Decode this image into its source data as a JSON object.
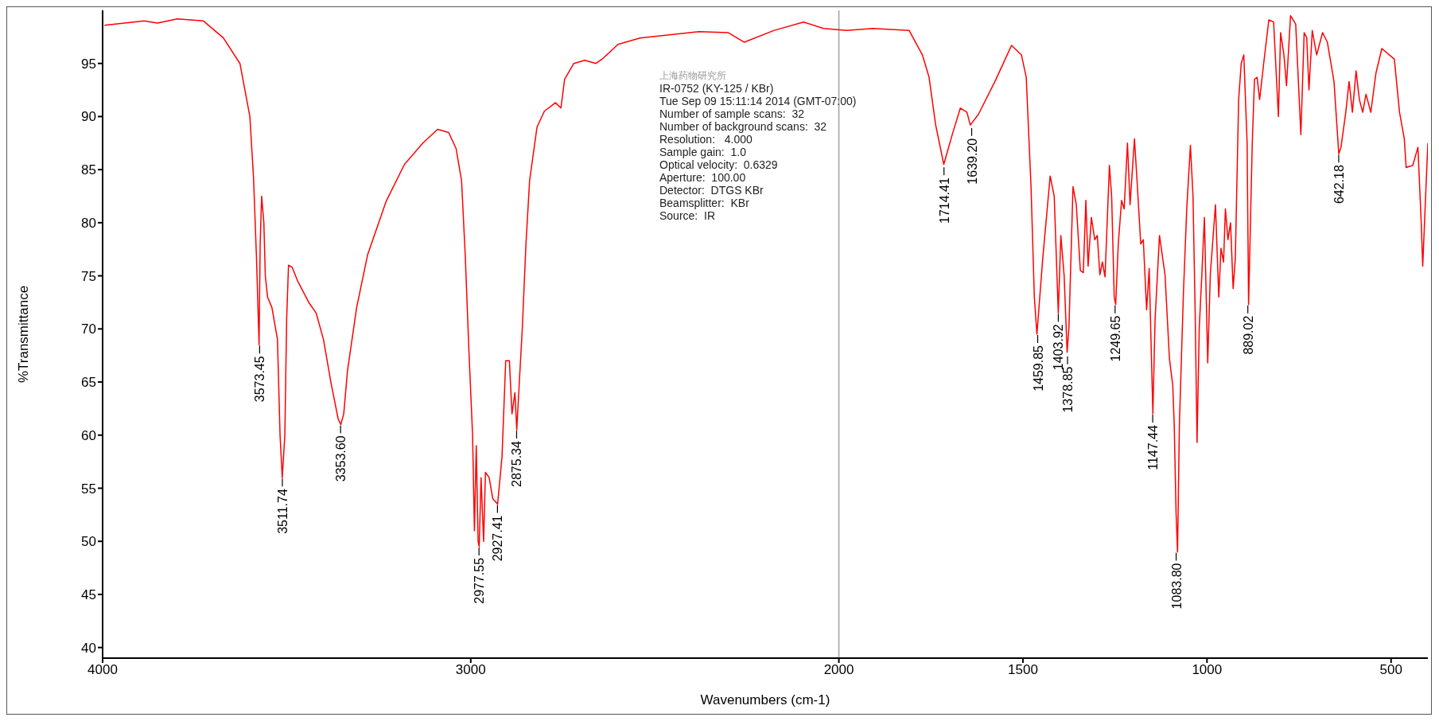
{
  "chart_data": {
    "type": "line",
    "xlabel": "Wavenumbers (cm-1)",
    "ylabel": "%Transmittance",
    "xlim": [
      4000,
      400
    ],
    "xticks": [
      4000,
      3000,
      2000,
      1500,
      1000,
      500
    ],
    "ylim": [
      39,
      100
    ],
    "yticks": [
      40,
      45,
      50,
      55,
      60,
      65,
      70,
      75,
      80,
      85,
      90,
      95
    ],
    "grid": false,
    "marker": "none",
    "line_style": "solid",
    "ref_lines": [
      {
        "axis": "x",
        "value": 2000,
        "color": "#a0a0a0"
      }
    ],
    "x": [
      3995,
      3887,
      3851,
      3797,
      3726,
      3672,
      3627,
      3600,
      3590,
      3582,
      3575,
      3572,
      3568,
      3562,
      3558,
      3552,
      3540,
      3525,
      3518,
      3512,
      3505,
      3500,
      3495,
      3485,
      3470,
      3440,
      3420,
      3400,
      3380,
      3360,
      3353,
      3345,
      3335,
      3310,
      3280,
      3230,
      3180,
      3130,
      3090,
      3060,
      3040,
      3025,
      3015,
      3005,
      2995,
      2990,
      2985,
      2980,
      2977,
      2972,
      2965,
      2960,
      2950,
      2940,
      2927,
      2915,
      2905,
      2895,
      2888,
      2880,
      2875,
      2868,
      2860,
      2850,
      2840,
      2820,
      2800,
      2770,
      2755,
      2745,
      2720,
      2690,
      2660,
      2640,
      2600,
      2540,
      2460,
      2380,
      2300,
      2257,
      2177,
      2096,
      2042,
      1979,
      1908,
      1809,
      1773,
      1755,
      1737,
      1715,
      1692,
      1670,
      1652,
      1643,
      1621,
      1576,
      1531,
      1504,
      1491,
      1478,
      1469,
      1462,
      1446,
      1426,
      1415,
      1404,
      1397,
      1388,
      1380,
      1375,
      1364,
      1355,
      1344,
      1336,
      1329,
      1323,
      1314,
      1305,
      1298,
      1291,
      1284,
      1277,
      1265,
      1259,
      1252,
      1248,
      1241,
      1232,
      1225,
      1216,
      1209,
      1197,
      1189,
      1180,
      1173,
      1164,
      1157,
      1147,
      1141,
      1129,
      1114,
      1102,
      1093,
      1089,
      1084,
      1080,
      1075,
      1064,
      1055,
      1045,
      1038,
      1032,
      1027,
      1021,
      1014,
      1007,
      998,
      991,
      984,
      977,
      968,
      962,
      955,
      950,
      943,
      936,
      929,
      923,
      914,
      907,
      900,
      891,
      887,
      877,
      871,
      864,
      857,
      846,
      832,
      819,
      806,
      800,
      791,
      784,
      773,
      759,
      745,
      736,
      729,
      723,
      714,
      702,
      686,
      673,
      655,
      642,
      636,
      623,
      614,
      605,
      595,
      586,
      577,
      568,
      555,
      541,
      525,
      491,
      477,
      464,
      459,
      441,
      427,
      418,
      414,
      405,
      400
    ],
    "series": [
      {
        "color": "#ff0000",
        "values": [
          98.6,
          99.0,
          98.8,
          99.2,
          99.0,
          97.4,
          95.0,
          90.0,
          84.2,
          76.7,
          68.5,
          78.0,
          82.5,
          80.0,
          75.0,
          73.0,
          72.0,
          69.0,
          60.0,
          56.0,
          60.0,
          71.0,
          76.0,
          75.8,
          74.5,
          72.5,
          71.5,
          69.0,
          65.0,
          61.5,
          61.0,
          62.0,
          66.0,
          72.0,
          77.0,
          82.0,
          85.5,
          87.5,
          88.8,
          88.5,
          87.0,
          84.0,
          77.0,
          68.0,
          60.0,
          51.0,
          59.0,
          50.0,
          49.5,
          56.0,
          50.0,
          56.5,
          56.0,
          54.0,
          53.5,
          58.0,
          67.0,
          67.0,
          62.0,
          64.0,
          60.5,
          65.0,
          70.0,
          78.0,
          84.0,
          89.0,
          90.5,
          91.3,
          90.8,
          93.5,
          95.0,
          95.3,
          95.0,
          95.5,
          96.8,
          97.4,
          97.7,
          98.0,
          97.9,
          97.0,
          98.1,
          98.9,
          98.3,
          98.1,
          98.3,
          98.1,
          95.8,
          93.7,
          89.2,
          85.5,
          88.3,
          90.8,
          90.4,
          89.2,
          90.2,
          93.3,
          96.7,
          95.8,
          93.7,
          83.4,
          73.0,
          69.5,
          76.7,
          84.4,
          82.5,
          71.5,
          78.8,
          75.0,
          67.8,
          70.1,
          83.4,
          81.7,
          75.5,
          75.3,
          82.1,
          75.9,
          80.5,
          78.4,
          78.8,
          75.1,
          76.3,
          74.9,
          85.4,
          82.5,
          73.0,
          72.3,
          78.0,
          82.1,
          81.3,
          87.5,
          81.7,
          87.9,
          83.4,
          78.0,
          78.4,
          71.8,
          75.7,
          62.0,
          70.9,
          78.8,
          75.1,
          67.2,
          64.7,
          61.0,
          52.7,
          49.0,
          61.0,
          73.4,
          81.3,
          87.3,
          82.5,
          71.4,
          59.3,
          70.1,
          75.1,
          80.5,
          66.8,
          75.1,
          78.4,
          81.7,
          73.0,
          77.6,
          76.3,
          81.3,
          78.4,
          80.0,
          73.8,
          76.7,
          91.6,
          95.0,
          95.8,
          87.5,
          72.3,
          87.5,
          93.5,
          93.7,
          91.6,
          95.0,
          99.1,
          98.9,
          90.0,
          97.9,
          95.8,
          92.9,
          99.5,
          98.7,
          88.3,
          97.9,
          97.4,
          92.5,
          98.1,
          95.8,
          97.9,
          97.0,
          93.3,
          86.5,
          87.1,
          90.4,
          93.3,
          90.4,
          94.3,
          91.6,
          90.4,
          92.1,
          90.4,
          94.1,
          96.4,
          95.4,
          90.4,
          87.9,
          85.2,
          85.4,
          87.1,
          80.0,
          75.9,
          83.4,
          87.5
        ]
      }
    ],
    "annotations": [
      "上海药物研究所",
      "IR-0752 (KY-125 / KBr)",
      "Tue Sep 09 15:11:14 2014 (GMT-07:00)",
      "Number of sample scans:  32",
      "Number of background scans:  32",
      "Resolution:   4.000",
      "Sample gain:  1.0",
      "Optical velocity:  0.6329",
      "Aperture:  100.00",
      "Detector:  DTGS KBr",
      "Beamsplitter:  KBr",
      "Source:  IR",
      {
        "text": "3573.45",
        "x": 3573.45,
        "y": 68.5
      },
      {
        "text": "3511.74",
        "x": 3511.74,
        "y": 56
      },
      {
        "text": "3353.60",
        "x": 3353.6,
        "y": 61
      },
      {
        "text": "2977.55",
        "x": 2977.55,
        "y": 49.5
      },
      {
        "text": "2927.41",
        "x": 2927.41,
        "y": 53.5
      },
      {
        "text": "2875.34",
        "x": 2875.34,
        "y": 60.5
      },
      {
        "text": "1714.41",
        "x": 1714.41,
        "y": 85.3
      },
      {
        "text": "1639.20",
        "x": 1639.2,
        "y": 89
      },
      {
        "text": "1459.85",
        "x": 1459.85,
        "y": 69.5
      },
      {
        "text": "1403.92",
        "x": 1403.92,
        "y": 71.5
      },
      {
        "text": "1378.85",
        "x": 1378.85,
        "y": 67.5
      },
      {
        "text": "1249.65",
        "x": 1249.65,
        "y": 72.3
      },
      {
        "text": "1147.44",
        "x": 1147.44,
        "y": 62
      },
      {
        "text": "1083.80",
        "x": 1083.8,
        "y": 49
      },
      {
        "text": "889.02",
        "x": 889.02,
        "y": 72.3
      },
      {
        "text": "642.18",
        "x": 642.18,
        "y": 86.5
      }
    ]
  }
}
